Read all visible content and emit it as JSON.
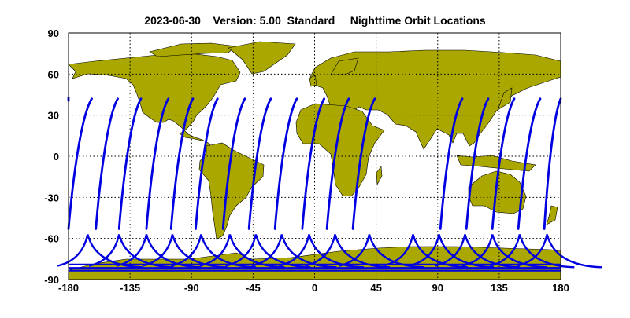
{
  "title": "2023-06-30    Version: 5.00  Standard     Nighttime Orbit Locations",
  "x_ticks": [
    "-180",
    "-135",
    "-90",
    "-45",
    "0",
    "45",
    "90",
    "135",
    "180"
  ],
  "y_ticks": [
    "90",
    "60",
    "30",
    "0",
    "-30",
    "-60",
    "-90"
  ],
  "colors": {
    "land": "#aaa800",
    "orbit": "#0000e0",
    "grid": "#000000",
    "background": "#ffffff"
  },
  "chart_data": {
    "type": "map",
    "xlim": [
      -180,
      180
    ],
    "ylim": [
      -90,
      90
    ],
    "grid": true,
    "series": [
      {
        "values": [
          [
            -180,
            -53
          ],
          [
            -163,
            42
          ]
        ]
      },
      {
        "values": [
          [
            -160,
            -53
          ],
          [
            -144,
            42
          ]
        ]
      },
      {
        "values": [
          [
            -143,
            -53
          ],
          [
            -127,
            42
          ]
        ]
      },
      {
        "values": [
          [
            -123,
            -53
          ],
          [
            -107,
            42
          ]
        ]
      },
      {
        "values": [
          [
            -105,
            -53
          ],
          [
            -89,
            42
          ]
        ]
      },
      {
        "values": [
          [
            -87,
            -53
          ],
          [
            -71,
            42
          ]
        ]
      },
      {
        "values": [
          [
            -67,
            -53
          ],
          [
            -51,
            42
          ]
        ]
      },
      {
        "values": [
          [
            -48,
            -53
          ],
          [
            -32,
            42
          ]
        ]
      },
      {
        "values": [
          [
            -29,
            -53
          ],
          [
            -13,
            42
          ]
        ]
      },
      {
        "values": [
          [
            -9,
            -53
          ],
          [
            7,
            42
          ]
        ]
      },
      {
        "values": [
          [
            9,
            -53
          ],
          [
            25,
            42
          ]
        ]
      },
      {
        "values": [
          [
            28,
            -53
          ],
          [
            44,
            42
          ]
        ]
      },
      {
        "values": [
          [
            92,
            -53
          ],
          [
            108,
            42
          ]
        ]
      },
      {
        "values": [
          [
            111,
            -53
          ],
          [
            127,
            42
          ]
        ]
      },
      {
        "values": [
          [
            130,
            -53
          ],
          [
            146,
            42
          ]
        ]
      },
      {
        "values": [
          [
            149,
            -53
          ],
          [
            165,
            42
          ]
        ]
      },
      {
        "values": [
          [
            168,
            -53
          ],
          [
            180,
            42
          ]
        ]
      }
    ],
    "south_arcs": [
      -166,
      -143,
      -123,
      -104,
      -83,
      -62,
      -43,
      -24,
      -4,
      15,
      40,
      72,
      91,
      110,
      130,
      150,
      170
    ]
  }
}
